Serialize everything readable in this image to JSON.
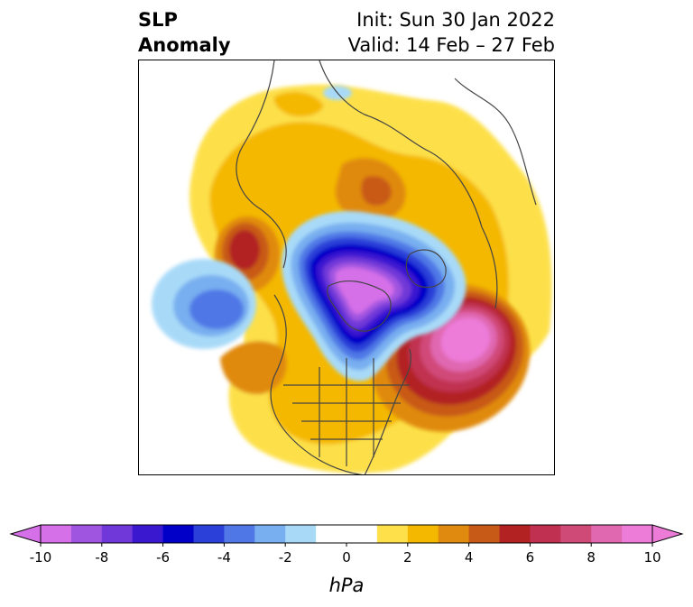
{
  "title": {
    "line1_left": "SLP",
    "line2_left": "Anomaly",
    "line1_right": "Init: Sun 30 Jan 2022",
    "line2_right": "Valid: 14 Feb – 27 Feb"
  },
  "colorbar": {
    "unit": "hPa",
    "tick_labels": [
      "-10",
      "-8",
      "-6",
      "-4",
      "-2",
      "0",
      "2",
      "4",
      "6",
      "8",
      "10"
    ],
    "colors": [
      "#d670e8",
      "#a055e0",
      "#7038d8",
      "#3a18d0",
      "#0000c8",
      "#2a40d8",
      "#4f78e6",
      "#78aff0",
      "#a8daf8",
      "#ffffff",
      "#ffffff",
      "#fde04a",
      "#f4b800",
      "#e08a10",
      "#c85a18",
      "#b22222",
      "#c03050",
      "#d04a78",
      "#e068b0",
      "#ec7cd8"
    ],
    "extend": "both"
  },
  "map": {
    "projection": "north-polar-stereographic",
    "field": "sea level pressure anomaly"
  }
}
